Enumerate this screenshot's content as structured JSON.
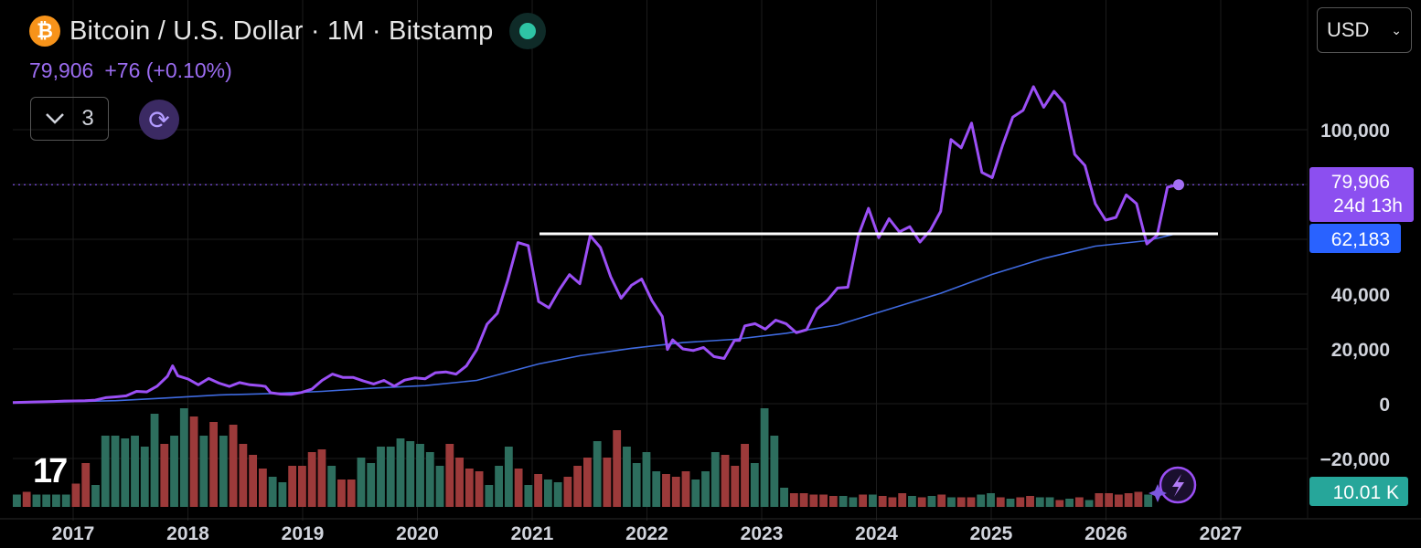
{
  "header": {
    "logo_icon": "bitcoin-icon",
    "title": "Bitcoin / U.S. Dollar · 1M · Bitstamp",
    "price": "79,906",
    "change": "+76 (+0.10%)",
    "indicator_count": "3",
    "currency": "USD"
  },
  "price_tag": {
    "value": "79,906",
    "countdown": "24d 13h",
    "color": "#8c4ff0"
  },
  "ma_tag": {
    "value": "62,183",
    "color": "#2962ff"
  },
  "volume_tag": {
    "value": "10.01 K",
    "color": "#26a69a"
  },
  "chart_data": {
    "type": "line",
    "title": "Bitcoin / U.S. Dollar · 1M · Bitstamp",
    "xlabel": "",
    "ylabel": "",
    "x_ticks": [
      "2017",
      "2018",
      "2019",
      "2020",
      "2021",
      "2022",
      "2023",
      "2024",
      "2025",
      "2026",
      "2027"
    ],
    "y_ticks": [
      -20000,
      0,
      20000,
      40000,
      100000
    ],
    "y_tick_labels": [
      "−20,000",
      "0",
      "20,000",
      "40,000",
      "100,000"
    ],
    "ylim": [
      -40000,
      110000
    ],
    "grid": true,
    "series": [
      {
        "role": "price",
        "color_early": "#4a7ff0",
        "color_late": "#9b4ff5",
        "points": [
          [
            2016.5,
            400
          ],
          [
            2016.7,
            650
          ],
          [
            2016.9,
            800
          ],
          [
            2017.0,
            970
          ],
          [
            2017.1,
            1000
          ],
          [
            2017.2,
            1100
          ],
          [
            2017.3,
            1300
          ],
          [
            2017.4,
            2200
          ],
          [
            2017.5,
            2500
          ],
          [
            2017.6,
            2850
          ],
          [
            2017.7,
            4500
          ],
          [
            2017.8,
            4300
          ],
          [
            2017.9,
            6400
          ],
          [
            2018.0,
            10000
          ],
          [
            2018.05,
            13800
          ],
          [
            2018.1,
            10200
          ],
          [
            2018.2,
            9000
          ],
          [
            2018.3,
            6900
          ],
          [
            2018.4,
            9200
          ],
          [
            2018.5,
            7500
          ],
          [
            2018.6,
            6300
          ],
          [
            2018.7,
            7700
          ],
          [
            2018.8,
            6900
          ],
          [
            2018.9,
            6600
          ],
          [
            2018.95,
            6300
          ],
          [
            2019.0,
            4000
          ],
          [
            2019.1,
            3500
          ],
          [
            2019.2,
            3400
          ],
          [
            2019.3,
            4100
          ],
          [
            2019.4,
            5300
          ],
          [
            2019.5,
            8500
          ],
          [
            2019.6,
            10800
          ],
          [
            2019.7,
            9600
          ],
          [
            2019.8,
            9600
          ],
          [
            2019.9,
            8300
          ],
          [
            2020.0,
            7200
          ],
          [
            2020.1,
            8500
          ],
          [
            2020.2,
            6400
          ],
          [
            2020.3,
            8600
          ],
          [
            2020.4,
            9400
          ],
          [
            2020.5,
            9100
          ],
          [
            2020.6,
            11300
          ],
          [
            2020.7,
            11600
          ],
          [
            2020.8,
            10800
          ],
          [
            2020.9,
            13800
          ],
          [
            2021.0,
            19700
          ],
          [
            2021.1,
            29000
          ],
          [
            2021.2,
            33000
          ],
          [
            2021.3,
            45000
          ],
          [
            2021.4,
            58800
          ],
          [
            2021.5,
            57700
          ],
          [
            2021.6,
            37300
          ],
          [
            2021.7,
            35000
          ],
          [
            2021.8,
            41500
          ],
          [
            2021.9,
            47100
          ],
          [
            2022.0,
            43800
          ],
          [
            2022.1,
            61300
          ],
          [
            2022.2,
            57000
          ],
          [
            2022.3,
            46300
          ],
          [
            2022.4,
            38500
          ],
          [
            2022.5,
            43200
          ],
          [
            2022.6,
            45500
          ],
          [
            2022.7,
            37600
          ],
          [
            2022.8,
            31800
          ],
          [
            2022.85,
            19800
          ],
          [
            2022.9,
            23300
          ],
          [
            2023.0,
            20000
          ],
          [
            2023.1,
            19400
          ],
          [
            2023.2,
            20500
          ],
          [
            2023.3,
            17200
          ],
          [
            2023.4,
            16500
          ],
          [
            2023.5,
            23100
          ],
          [
            2023.55,
            23100
          ],
          [
            2023.6,
            28400
          ],
          [
            2023.7,
            29200
          ],
          [
            2023.8,
            27200
          ],
          [
            2023.9,
            30500
          ],
          [
            2024.0,
            29200
          ],
          [
            2024.1,
            25900
          ],
          [
            2024.2,
            27000
          ],
          [
            2024.3,
            34600
          ],
          [
            2024.4,
            37700
          ],
          [
            2024.5,
            42200
          ],
          [
            2024.6,
            42500
          ],
          [
            2024.7,
            61200
          ],
          [
            2024.8,
            71300
          ],
          [
            2024.9,
            60600
          ],
          [
            2025.0,
            67500
          ],
          [
            2025.1,
            62700
          ],
          [
            2025.2,
            64600
          ],
          [
            2025.3,
            59000
          ],
          [
            2025.4,
            63300
          ],
          [
            2025.5,
            70200
          ],
          [
            2025.6,
            96400
          ],
          [
            2025.7,
            93400
          ],
          [
            2025.8,
            102400
          ],
          [
            2025.9,
            84400
          ],
          [
            2026.0,
            82500
          ],
          [
            2026.1,
            94200
          ],
          [
            2026.2,
            104600
          ],
          [
            2026.3,
            107100
          ],
          [
            2026.4,
            115700
          ],
          [
            2026.5,
            108200
          ],
          [
            2026.6,
            114000
          ],
          [
            2026.7,
            109600
          ],
          [
            2026.8,
            91000
          ],
          [
            2026.9,
            86900
          ],
          [
            2027.0,
            73000
          ],
          [
            2027.1,
            67000
          ],
          [
            2027.2,
            68000
          ],
          [
            2027.3,
            76200
          ],
          [
            2027.4,
            73000
          ],
          [
            2027.5,
            58300
          ],
          [
            2027.6,
            61500
          ],
          [
            2027.7,
            79000
          ],
          [
            2027.8,
            79906
          ]
        ]
      },
      {
        "role": "moving-average",
        "color": "#3f6ae0",
        "points": [
          [
            2016.5,
            400
          ],
          [
            2017.0,
            700
          ],
          [
            2017.5,
            1100
          ],
          [
            2018.0,
            2100
          ],
          [
            2018.5,
            3200
          ],
          [
            2019.0,
            3700
          ],
          [
            2019.5,
            4500
          ],
          [
            2020.0,
            5700
          ],
          [
            2020.5,
            6600
          ],
          [
            2021.0,
            8500
          ],
          [
            2021.3,
            11500
          ],
          [
            2021.6,
            14500
          ],
          [
            2022.0,
            17500
          ],
          [
            2022.5,
            20200
          ],
          [
            2023.0,
            22300
          ],
          [
            2023.5,
            23500
          ],
          [
            2024.0,
            25700
          ],
          [
            2024.5,
            28700
          ],
          [
            2025.0,
            34500
          ],
          [
            2025.5,
            40300
          ],
          [
            2026.0,
            47200
          ],
          [
            2026.5,
            53000
          ],
          [
            2027.0,
            57500
          ],
          [
            2027.5,
            59500
          ],
          [
            2027.8,
            62183
          ]
        ]
      }
    ],
    "horizontal_line": {
      "value": 62000,
      "x_start": 2021.4,
      "x_end": 2027.8,
      "color": "#ffffff"
    },
    "volume": {
      "up_color": "#2d6e5e",
      "down_color": "#9c3a3a",
      "bars": [
        [
          2016.5,
          0.45,
          1
        ],
        [
          2016.6,
          0.55,
          0
        ],
        [
          2016.7,
          0.45,
          1
        ],
        [
          2016.8,
          0.45,
          1
        ],
        [
          2016.9,
          0.45,
          1
        ],
        [
          2017.0,
          0.45,
          1
        ],
        [
          2017.1,
          0.85,
          0
        ],
        [
          2017.2,
          1.6,
          0
        ],
        [
          2017.3,
          0.8,
          1
        ],
        [
          2017.4,
          2.6,
          1
        ],
        [
          2017.5,
          2.6,
          1
        ],
        [
          2017.6,
          2.5,
          1
        ],
        [
          2017.7,
          2.6,
          1
        ],
        [
          2017.8,
          2.2,
          1
        ],
        [
          2017.9,
          3.4,
          1
        ],
        [
          2018.0,
          2.3,
          0
        ],
        [
          2018.1,
          2.6,
          1
        ],
        [
          2018.2,
          3.6,
          1
        ],
        [
          2018.3,
          3.3,
          0
        ],
        [
          2018.4,
          2.6,
          1
        ],
        [
          2018.5,
          3.1,
          0
        ],
        [
          2018.6,
          2.6,
          1
        ],
        [
          2018.7,
          3.0,
          0
        ],
        [
          2018.8,
          2.3,
          0
        ],
        [
          2018.9,
          1.9,
          0
        ],
        [
          2019.0,
          1.4,
          0
        ],
        [
          2019.1,
          1.1,
          1
        ],
        [
          2019.2,
          0.9,
          1
        ],
        [
          2019.3,
          1.5,
          0
        ],
        [
          2019.4,
          1.5,
          0
        ],
        [
          2019.5,
          2.0,
          0
        ],
        [
          2019.6,
          2.1,
          0
        ],
        [
          2019.7,
          1.5,
          1
        ],
        [
          2019.8,
          1.0,
          0
        ],
        [
          2019.9,
          1.0,
          0
        ],
        [
          2020.0,
          1.8,
          1
        ],
        [
          2020.1,
          1.6,
          1
        ],
        [
          2020.2,
          2.2,
          1
        ],
        [
          2020.3,
          2.2,
          1
        ],
        [
          2020.4,
          2.5,
          1
        ],
        [
          2020.5,
          2.4,
          1
        ],
        [
          2020.6,
          2.3,
          1
        ],
        [
          2020.7,
          2.0,
          1
        ],
        [
          2020.8,
          1.5,
          1
        ],
        [
          2020.9,
          2.3,
          0
        ],
        [
          2021.0,
          1.8,
          0
        ],
        [
          2021.1,
          1.4,
          0
        ],
        [
          2021.2,
          1.3,
          0
        ],
        [
          2021.3,
          0.8,
          1
        ],
        [
          2021.4,
          1.5,
          1
        ],
        [
          2021.5,
          2.2,
          1
        ],
        [
          2021.6,
          1.4,
          0
        ],
        [
          2021.7,
          0.8,
          1
        ],
        [
          2021.8,
          1.2,
          0
        ],
        [
          2021.9,
          1.0,
          1
        ],
        [
          2022.0,
          0.9,
          1
        ],
        [
          2022.1,
          1.1,
          0
        ],
        [
          2022.2,
          1.5,
          0
        ],
        [
          2022.3,
          1.8,
          0
        ],
        [
          2022.4,
          2.4,
          1
        ],
        [
          2022.5,
          1.8,
          0
        ],
        [
          2022.6,
          2.8,
          0
        ],
        [
          2022.7,
          2.2,
          1
        ],
        [
          2022.8,
          1.6,
          1
        ],
        [
          2022.9,
          2.0,
          1
        ],
        [
          2023.0,
          1.3,
          1
        ],
        [
          2023.1,
          1.2,
          0
        ],
        [
          2023.2,
          1.1,
          0
        ],
        [
          2023.3,
          1.3,
          0
        ],
        [
          2023.4,
          1.0,
          1
        ],
        [
          2023.5,
          1.3,
          1
        ],
        [
          2023.6,
          2.0,
          1
        ],
        [
          2023.7,
          1.9,
          0
        ],
        [
          2023.8,
          1.5,
          0
        ],
        [
          2023.9,
          2.3,
          0
        ],
        [
          2024.0,
          1.6,
          1
        ],
        [
          2024.1,
          3.6,
          1
        ],
        [
          2024.2,
          2.6,
          1
        ],
        [
          2024.3,
          0.7,
          1
        ],
        [
          2024.4,
          0.5,
          0
        ],
        [
          2024.5,
          0.5,
          0
        ],
        [
          2024.6,
          0.45,
          0
        ],
        [
          2024.7,
          0.45,
          0
        ],
        [
          2024.8,
          0.4,
          0
        ],
        [
          2024.9,
          0.4,
          1
        ],
        [
          2025.0,
          0.35,
          1
        ],
        [
          2025.1,
          0.45,
          0
        ],
        [
          2025.2,
          0.45,
          1
        ],
        [
          2025.3,
          0.4,
          0
        ],
        [
          2025.4,
          0.35,
          0
        ],
        [
          2025.5,
          0.5,
          0
        ],
        [
          2025.6,
          0.4,
          1
        ],
        [
          2025.7,
          0.35,
          0
        ],
        [
          2025.8,
          0.4,
          1
        ],
        [
          2025.9,
          0.45,
          0
        ],
        [
          2026.0,
          0.35,
          1
        ],
        [
          2026.1,
          0.35,
          0
        ],
        [
          2026.2,
          0.35,
          0
        ],
        [
          2026.3,
          0.45,
          1
        ],
        [
          2026.4,
          0.5,
          1
        ],
        [
          2026.5,
          0.35,
          0
        ],
        [
          2026.6,
          0.3,
          1
        ],
        [
          2026.7,
          0.35,
          0
        ],
        [
          2026.8,
          0.4,
          0
        ],
        [
          2026.9,
          0.35,
          1
        ],
        [
          2027.0,
          0.35,
          1
        ],
        [
          2027.1,
          0.25,
          0
        ],
        [
          2027.2,
          0.3,
          1
        ],
        [
          2027.3,
          0.35,
          0
        ],
        [
          2027.4,
          0.25,
          1
        ],
        [
          2027.5,
          0.5,
          0
        ],
        [
          2027.6,
          0.5,
          0
        ],
        [
          2027.7,
          0.45,
          0
        ],
        [
          2027.8,
          0.5,
          0
        ],
        [
          2027.9,
          0.55,
          0
        ],
        [
          2028.0,
          0.45,
          1
        ]
      ]
    }
  }
}
